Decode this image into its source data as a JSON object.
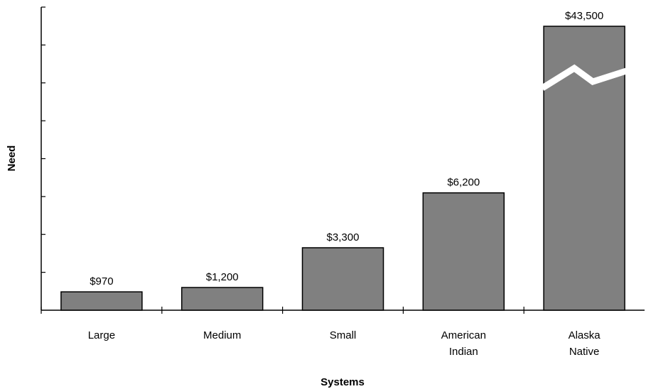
{
  "chart_data": {
    "type": "bar",
    "categories": [
      [
        "Large"
      ],
      [
        "Medium"
      ],
      [
        "Small"
      ],
      [
        "American",
        "Indian"
      ],
      [
        "Alaska",
        "Native"
      ]
    ],
    "values": [
      970,
      1200,
      3300,
      6200,
      43500
    ],
    "value_labels": [
      "$970",
      "$1,200",
      "$3,300",
      "$6,200",
      "$43,500"
    ],
    "xlabel": "Systems",
    "ylabel": "Need",
    "y_tick_count": 8,
    "broken_axis_bar": 4,
    "bar_color": "#808080",
    "grid": false
  }
}
